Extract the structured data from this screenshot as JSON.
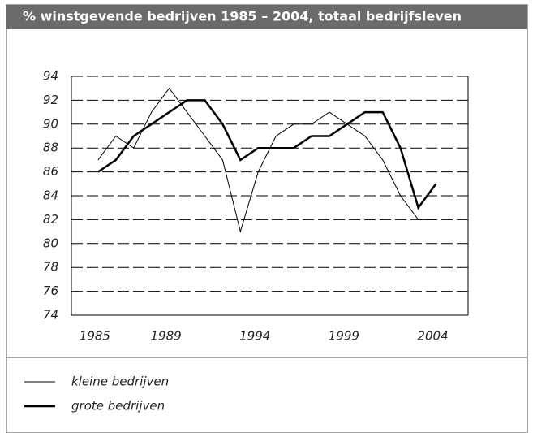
{
  "chart_data": {
    "type": "line",
    "title": "% winstgevende bedrijven 1985 – 2004, totaal bedrijfsleven",
    "x": [
      1985,
      1986,
      1987,
      1988,
      1989,
      1990,
      1991,
      1992,
      1993,
      1994,
      1995,
      1996,
      1997,
      1998,
      1999,
      2000,
      2001,
      2002,
      2003,
      2004
    ],
    "series": [
      {
        "name": "kleine bedrijven",
        "color": "#000000",
        "width": 1,
        "values": [
          87,
          89,
          88,
          91,
          93,
          91,
          89,
          87,
          81,
          86,
          89,
          90,
          90,
          91,
          90,
          89,
          87,
          84,
          82,
          82
        ]
      },
      {
        "name": "grote bedrijven",
        "color": "#000000",
        "width": 2.5,
        "values": [
          86,
          87,
          89,
          90,
          91,
          92,
          92,
          90,
          87,
          88,
          88,
          88,
          89,
          89,
          90,
          91,
          91,
          88,
          83,
          85
        ]
      }
    ],
    "xlim": [
      1983.5,
      2005.8
    ],
    "xticks": [
      1985,
      1989,
      1994,
      1999,
      2004
    ],
    "ylim": [
      74,
      94
    ],
    "yticks": [
      74,
      76,
      78,
      80,
      82,
      84,
      86,
      88,
      90,
      92,
      94
    ],
    "grid": true
  }
}
